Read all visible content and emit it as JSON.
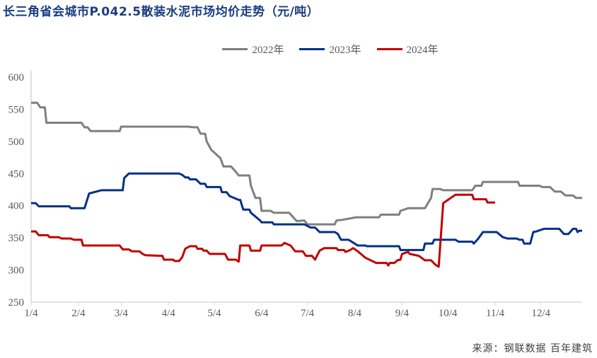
{
  "title": "长三角省会城市P.042.5散装水泥市场均价走势（元/吨）",
  "source": "来源：钢联数据 百年建筑",
  "chart_data": {
    "type": "line",
    "title": "长三角省会城市P.042.5散装水泥市场均价走势（元/吨）",
    "xlabel": "",
    "ylabel": "",
    "ylim": [
      250,
      600
    ],
    "yticks": [
      "250",
      "300",
      "350",
      "400",
      "450",
      "500",
      "550",
      "600"
    ],
    "xticks": [
      "1/4",
      "2/4",
      "3/4",
      "4/4",
      "5/4",
      "6/4",
      "7/4",
      "8/4",
      "9/4",
      "10/4",
      "11/4",
      "12/4"
    ],
    "xrange": [
      "1/4",
      "12/31"
    ],
    "grid": false,
    "legend": "top",
    "series": [
      {
        "name": "2022年",
        "color": "#7f7f7f",
        "points": [
          [
            "1/4",
            560
          ],
          [
            "1/8",
            560
          ],
          [
            "1/10",
            553
          ],
          [
            "1/13",
            553
          ],
          [
            "1/14",
            529
          ],
          [
            "2/6",
            529
          ],
          [
            "2/8",
            522
          ],
          [
            "2/10",
            522
          ],
          [
            "2/12",
            516
          ],
          [
            "3/3",
            516
          ],
          [
            "3/4",
            523
          ],
          [
            "4/17",
            523
          ],
          [
            "4/20",
            522
          ],
          [
            "4/23",
            522
          ],
          [
            "4/25",
            512
          ],
          [
            "4/28",
            512
          ],
          [
            "4/29",
            500
          ],
          [
            "5/2",
            487
          ],
          [
            "5/8",
            474
          ],
          [
            "5/10",
            461
          ],
          [
            "5/15",
            461
          ],
          [
            "5/18",
            453
          ],
          [
            "5/20",
            447
          ],
          [
            "5/27",
            447
          ],
          [
            "5/28",
            431
          ],
          [
            "5/31",
            412
          ],
          [
            "6/3",
            412
          ],
          [
            "6/4",
            392
          ],
          [
            "6/10",
            392
          ],
          [
            "6/12",
            389
          ],
          [
            "6/22",
            389
          ],
          [
            "6/27",
            376
          ],
          [
            "7/2",
            377
          ],
          [
            "7/4",
            371
          ],
          [
            "7/22",
            371
          ],
          [
            "7/23",
            377
          ],
          [
            "7/27",
            378
          ],
          [
            "8/5",
            382
          ],
          [
            "8/20",
            382
          ],
          [
            "8/21",
            386
          ],
          [
            "9/2",
            386
          ],
          [
            "9/3",
            392
          ],
          [
            "9/8",
            396
          ],
          [
            "9/19",
            396
          ],
          [
            "9/23",
            412
          ],
          [
            "9/24",
            426
          ],
          [
            "9/29",
            426
          ],
          [
            "10/1",
            424
          ],
          [
            "10/20",
            424
          ],
          [
            "10/22",
            431
          ],
          [
            "10/26",
            431
          ],
          [
            "10/27",
            437
          ],
          [
            "11/19",
            437
          ],
          [
            "11/20",
            431
          ],
          [
            "12/3",
            431
          ],
          [
            "12/5",
            429
          ],
          [
            "12/10",
            429
          ],
          [
            "12/13",
            422
          ],
          [
            "12/17",
            422
          ],
          [
            "12/20",
            416
          ],
          [
            "12/25",
            416
          ],
          [
            "12/27",
            412
          ],
          [
            "12/31",
            412
          ]
        ]
      },
      {
        "name": "2023年",
        "color": "#003087",
        "points": [
          [
            "1/4",
            404
          ],
          [
            "1/7",
            404
          ],
          [
            "1/9",
            399
          ],
          [
            "1/29",
            399
          ],
          [
            "1/30",
            396
          ],
          [
            "2/8",
            396
          ],
          [
            "2/11",
            419
          ],
          [
            "2/19",
            424
          ],
          [
            "3/5",
            424
          ],
          [
            "3/6",
            443
          ],
          [
            "3/9",
            450
          ],
          [
            "4/11",
            450
          ],
          [
            "4/13",
            448
          ],
          [
            "4/15",
            444
          ],
          [
            "4/17",
            444
          ],
          [
            "4/18",
            441
          ],
          [
            "4/22",
            441
          ],
          [
            "4/25",
            434
          ],
          [
            "4/28",
            434
          ],
          [
            "4/29",
            429
          ],
          [
            "5/8",
            429
          ],
          [
            "5/9",
            421
          ],
          [
            "5/12",
            421
          ],
          [
            "5/14",
            415
          ],
          [
            "5/20",
            409
          ],
          [
            "5/21",
            409
          ],
          [
            "5/23",
            394
          ],
          [
            "5/27",
            394
          ],
          [
            "5/28",
            389
          ],
          [
            "5/31",
            383
          ],
          [
            "6/3",
            377
          ],
          [
            "6/4",
            374
          ],
          [
            "6/11",
            374
          ],
          [
            "6/12",
            371
          ],
          [
            "7/2",
            371
          ],
          [
            "7/6",
            366
          ],
          [
            "7/9",
            366
          ],
          [
            "7/12",
            359
          ],
          [
            "7/22",
            359
          ],
          [
            "7/24",
            356
          ],
          [
            "7/26",
            347
          ],
          [
            "7/31",
            347
          ],
          [
            "8/4",
            341
          ],
          [
            "8/6",
            338
          ],
          [
            "8/11",
            338
          ],
          [
            "8/12",
            337
          ],
          [
            "9/2",
            337
          ],
          [
            "9/3",
            331
          ],
          [
            "9/18",
            331
          ],
          [
            "9/19",
            341
          ],
          [
            "9/24",
            341
          ],
          [
            "9/25",
            347
          ],
          [
            "10/9",
            347
          ],
          [
            "10/11",
            344
          ],
          [
            "10/20",
            344
          ],
          [
            "10/21",
            341
          ],
          [
            "10/24",
            349
          ],
          [
            "10/27",
            359
          ],
          [
            "11/5",
            359
          ],
          [
            "11/9",
            351
          ],
          [
            "11/12",
            349
          ],
          [
            "11/18",
            349
          ],
          [
            "11/20",
            347
          ],
          [
            "11/22",
            347
          ],
          [
            "11/23",
            341
          ],
          [
            "11/27",
            341
          ],
          [
            "11/29",
            359
          ],
          [
            "12/1",
            360
          ],
          [
            "12/6",
            364
          ],
          [
            "12/16",
            364
          ],
          [
            "12/18",
            359
          ],
          [
            "12/19",
            356
          ],
          [
            "12/22",
            356
          ],
          [
            "12/25",
            364
          ],
          [
            "12/27",
            364
          ],
          [
            "12/28",
            359
          ],
          [
            "12/29",
            361
          ],
          [
            "12/31",
            361
          ]
        ]
      },
      {
        "name": "2024年",
        "color": "#c00000",
        "points": [
          [
            "1/4",
            360
          ],
          [
            "1/7",
            360
          ],
          [
            "1/9",
            354
          ],
          [
            "1/15",
            354
          ],
          [
            "1/16",
            351
          ],
          [
            "1/22",
            351
          ],
          [
            "1/24",
            349
          ],
          [
            "1/30",
            349
          ],
          [
            "2/1",
            347
          ],
          [
            "2/6",
            347
          ],
          [
            "2/7",
            338
          ],
          [
            "3/3",
            338
          ],
          [
            "3/5",
            332
          ],
          [
            "3/9",
            332
          ],
          [
            "3/11",
            329
          ],
          [
            "3/16",
            329
          ],
          [
            "3/18",
            325
          ],
          [
            "3/20",
            323
          ],
          [
            "3/31",
            322
          ],
          [
            "4/1",
            316
          ],
          [
            "4/7",
            316
          ],
          [
            "4/8",
            314
          ],
          [
            "4/11",
            314
          ],
          [
            "4/13",
            320
          ],
          [
            "4/15",
            333
          ],
          [
            "4/18",
            337
          ],
          [
            "4/22",
            337
          ],
          [
            "4/23",
            333
          ],
          [
            "4/26",
            333
          ],
          [
            "4/27",
            330
          ],
          [
            "4/29",
            330
          ],
          [
            "5/1",
            325
          ],
          [
            "5/11",
            325
          ],
          [
            "5/13",
            316
          ],
          [
            "5/18",
            316
          ],
          [
            "5/20",
            313
          ],
          [
            "5/21",
            338
          ],
          [
            "5/27",
            338
          ],
          [
            "5/28",
            330
          ],
          [
            "6/3",
            330
          ],
          [
            "6/4",
            338
          ],
          [
            "6/17",
            338
          ],
          [
            "6/19",
            342
          ],
          [
            "6/23",
            338
          ],
          [
            "6/26",
            329
          ],
          [
            "7/1",
            329
          ],
          [
            "7/3",
            322
          ],
          [
            "7/7",
            322
          ],
          [
            "7/9",
            316
          ],
          [
            "7/12",
            330
          ],
          [
            "7/15",
            334
          ],
          [
            "7/23",
            334
          ],
          [
            "7/24",
            331
          ],
          [
            "7/28",
            331
          ],
          [
            "7/29",
            328
          ],
          [
            "8/1",
            331
          ],
          [
            "8/3",
            334
          ],
          [
            "8/6",
            329
          ],
          [
            "8/11",
            319
          ],
          [
            "8/18",
            311
          ],
          [
            "8/25",
            311
          ],
          [
            "8/26",
            307
          ],
          [
            "8/27",
            311
          ],
          [
            "8/30",
            311
          ],
          [
            "9/1",
            315
          ],
          [
            "9/3",
            316
          ],
          [
            "9/4",
            325
          ],
          [
            "9/8",
            328
          ],
          [
            "9/9",
            325
          ],
          [
            "9/15",
            322
          ],
          [
            "9/19",
            315
          ],
          [
            "9/23",
            315
          ],
          [
            "9/26",
            308
          ],
          [
            "9/28",
            305
          ],
          [
            "10/1",
            404
          ],
          [
            "10/9",
            417
          ],
          [
            "10/20",
            417
          ],
          [
            "10/21",
            410
          ],
          [
            "10/29",
            410
          ],
          [
            "10/30",
            405
          ],
          [
            "11/4",
            405
          ]
        ]
      }
    ]
  }
}
